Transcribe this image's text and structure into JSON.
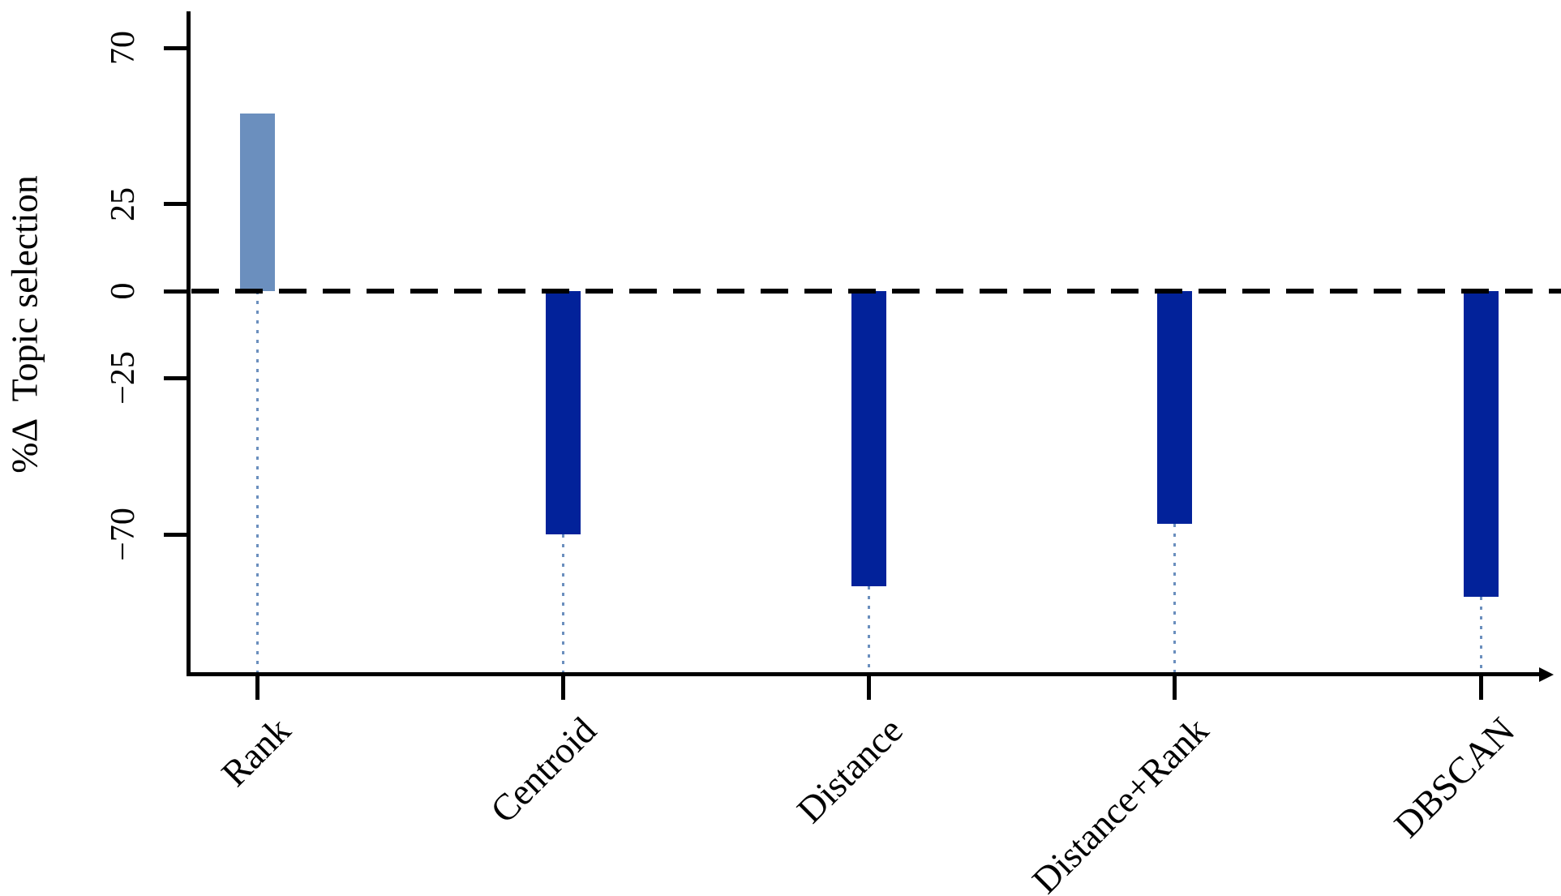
{
  "chart_data": {
    "type": "bar",
    "title": "",
    "xlabel": "",
    "ylabel": "%Δ  Topic selection",
    "categories": [
      "Rank",
      "Centroid",
      "Distance",
      "Distance+Rank",
      "DBSCAN"
    ],
    "values": [
      51,
      -70,
      -85,
      -67,
      -88
    ],
    "baseline": 0,
    "zero_line_style": "dashed",
    "grid": false,
    "legend": null,
    "ylim": [
      -110,
      80
    ],
    "y_ticks": [
      {
        "value": 70,
        "label": "70"
      },
      {
        "value": 25,
        "label": "25"
      },
      {
        "value": 0,
        "label": "0"
      },
      {
        "value": -25,
        "label": "−25"
      },
      {
        "value": -70,
        "label": "−70"
      }
    ],
    "colors": {
      "positive_bar": "#6b8fbe",
      "negative_bar": "#02229a",
      "guide_dots": "#6b8fbe",
      "axis": "#000000"
    }
  }
}
